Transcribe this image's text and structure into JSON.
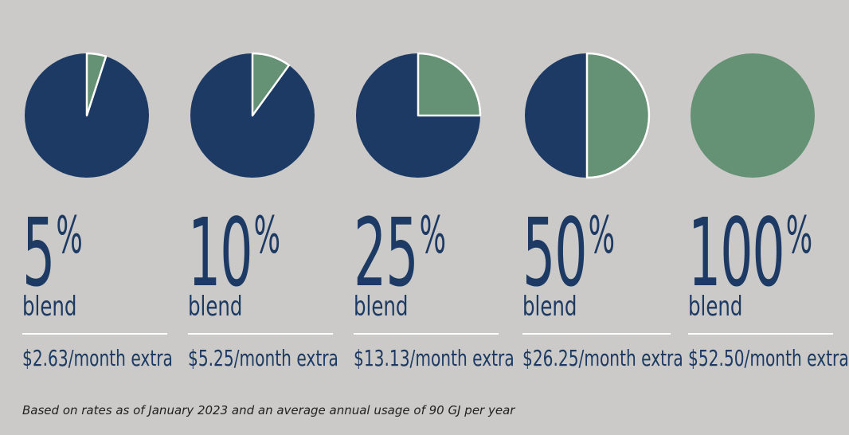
{
  "colors": {
    "background": "#cbcac8",
    "navy": "#1c3a63",
    "green": "#659274",
    "divider": "#ffffff",
    "footnote": "#222222"
  },
  "chart_data": {
    "type": "pie",
    "legend_position": "none",
    "items": [
      {
        "percent_label": "5",
        "percent_sign": "%",
        "label": "blend",
        "price": "$2.63/month extra",
        "share": 0.05
      },
      {
        "percent_label": "10",
        "percent_sign": "%",
        "label": "blend",
        "price": "$5.25/month extra",
        "share": 0.1
      },
      {
        "percent_label": "25",
        "percent_sign": "%",
        "label": "blend",
        "price": "$13.13/month extra",
        "share": 0.25
      },
      {
        "percent_label": "50",
        "percent_sign": "%",
        "label": "blend",
        "price": "$26.25/month extra",
        "share": 0.5
      },
      {
        "percent_label": "100",
        "percent_sign": "%",
        "label": "blend",
        "price": "$52.50/month extra",
        "share": 1.0
      }
    ]
  },
  "footnote": "Based on rates as of January 2023 and an average annual usage of 90 GJ per year"
}
